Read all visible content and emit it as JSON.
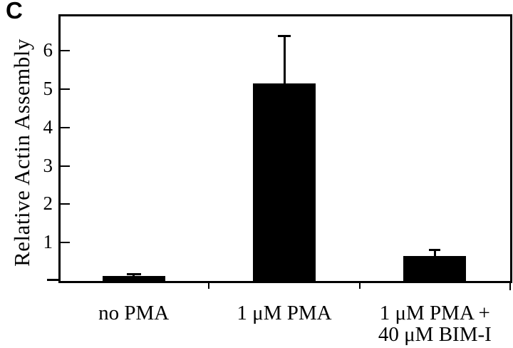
{
  "panel_label": "C",
  "chart_data": {
    "type": "bar",
    "title": "",
    "xlabel": "",
    "ylabel": "Relative Actin Assembly",
    "categories": [
      "no PMA",
      "1 μM PMA",
      "1 μM PMA +\n40 μM BIM-I"
    ],
    "values": [
      0.13,
      5.15,
      0.65
    ],
    "errors_plus": [
      0.06,
      1.25,
      0.17
    ],
    "yticks": [
      1,
      2,
      3,
      4,
      5,
      6
    ],
    "ylim": [
      0,
      6.95
    ],
    "bar_color": "#000000",
    "axis_color": "#000000",
    "grid": false,
    "legend": null
  }
}
